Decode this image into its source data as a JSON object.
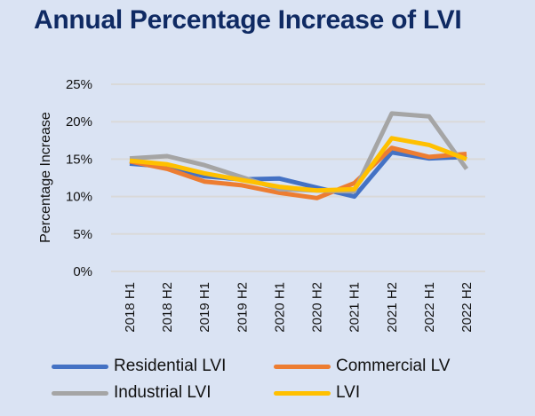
{
  "chart_data": {
    "type": "line",
    "title": "Annual Percentage Increase of LVI",
    "xlabel": "",
    "ylabel": "Percentage Increase",
    "categories": [
      "2018 H1",
      "2018 H2",
      "2019 H1",
      "2019 H2",
      "2020 H1",
      "2020 H2",
      "2021 H1",
      "2021 H2",
      "2022 H1",
      "2022 H2"
    ],
    "ylim": [
      0,
      25
    ],
    "yticks": [
      "0%",
      "5%",
      "10%",
      "15%",
      "20%",
      "25%"
    ],
    "ytick_values": [
      0,
      5,
      10,
      15,
      20,
      25
    ],
    "grid": true,
    "legend_position": "bottom",
    "series": [
      {
        "name": "Residential LVI",
        "color": "#4472c4",
        "values": [
          14.4,
          14.0,
          12.7,
          12.3,
          12.4,
          11.2,
          10.0,
          15.9,
          15.1,
          15.3
        ]
      },
      {
        "name": "Commercial LV",
        "color": "#ed7d31",
        "values": [
          14.7,
          13.7,
          12.0,
          11.5,
          10.5,
          9.8,
          11.8,
          16.5,
          15.3,
          15.7
        ]
      },
      {
        "name": "Industrial LVI",
        "color": "#a5a5a5",
        "values": [
          15.1,
          15.4,
          14.2,
          12.6,
          11.0,
          10.8,
          10.7,
          21.1,
          20.7,
          13.7
        ]
      },
      {
        "name": "LVI",
        "color": "#ffc000",
        "values": [
          14.8,
          14.3,
          13.1,
          12.2,
          11.3,
          10.8,
          11.0,
          17.8,
          16.9,
          15.0
        ]
      }
    ]
  }
}
